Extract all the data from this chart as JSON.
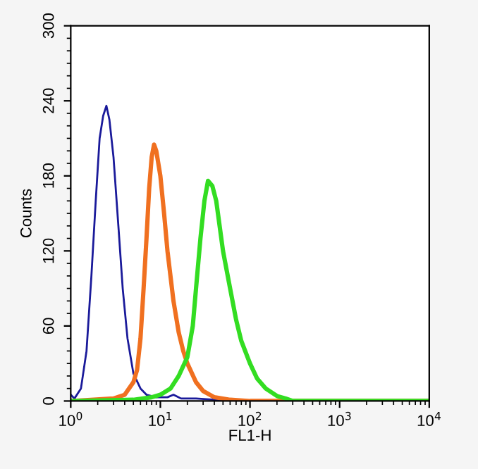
{
  "chart_data": {
    "type": "line",
    "xlabel": "FL1-H",
    "ylabel": "Counts",
    "log": "x",
    "grid": false,
    "marker": "none",
    "line_style": "solid",
    "xlim": [
      1,
      10000
    ],
    "ylim": [
      0,
      300
    ],
    "xticks": [
      {
        "value": 1,
        "label": "10$^{0}$"
      },
      {
        "value": 10,
        "label": "10$^{1}$"
      },
      {
        "value": 100,
        "label": "10$^{2}$"
      },
      {
        "value": 1000,
        "label": "10$^{3}$"
      },
      {
        "value": 10000,
        "label": "10$^{4}$"
      }
    ],
    "yticks": [
      0,
      60,
      120,
      180,
      240,
      300
    ],
    "series": [
      {
        "color": "#1a1a9a",
        "x": [
          1.0,
          1.1,
          1.3,
          1.5,
          1.7,
          1.9,
          2.1,
          2.3,
          2.5,
          2.7,
          3.0,
          3.4,
          3.8,
          4.3,
          5,
          6,
          7,
          9,
          12,
          14,
          17,
          25,
          40,
          100,
          10000
        ],
        "values": [
          5,
          2,
          10,
          40,
          100,
          160,
          210,
          228,
          236,
          225,
          195,
          140,
          90,
          50,
          22,
          10,
          5,
          3,
          3,
          5,
          2,
          2,
          1,
          0,
          0
        ]
      },
      {
        "color": "#f07020",
        "x": [
          1,
          3,
          4,
          5,
          5.5,
          6,
          6.5,
          7,
          7.5,
          8,
          8.5,
          9,
          10,
          11,
          12,
          14,
          16,
          18,
          20,
          25,
          30,
          40,
          60,
          100,
          10000
        ],
        "values": [
          0,
          2,
          5,
          15,
          25,
          50,
          90,
          130,
          170,
          195,
          205,
          200,
          180,
          150,
          120,
          80,
          55,
          40,
          30,
          15,
          8,
          3,
          1,
          0,
          0
        ]
      },
      {
        "color": "#33dd22",
        "x": [
          1,
          5,
          8,
          10,
          13,
          16,
          20,
          23,
          25,
          28,
          31,
          34,
          38,
          42,
          50,
          60,
          70,
          80,
          100,
          120,
          150,
          200,
          250,
          300,
          10000
        ],
        "values": [
          0,
          1,
          3,
          5,
          10,
          20,
          35,
          60,
          90,
          130,
          160,
          176,
          172,
          160,
          120,
          90,
          65,
          48,
          30,
          18,
          10,
          4,
          2,
          0,
          0
        ]
      }
    ]
  }
}
